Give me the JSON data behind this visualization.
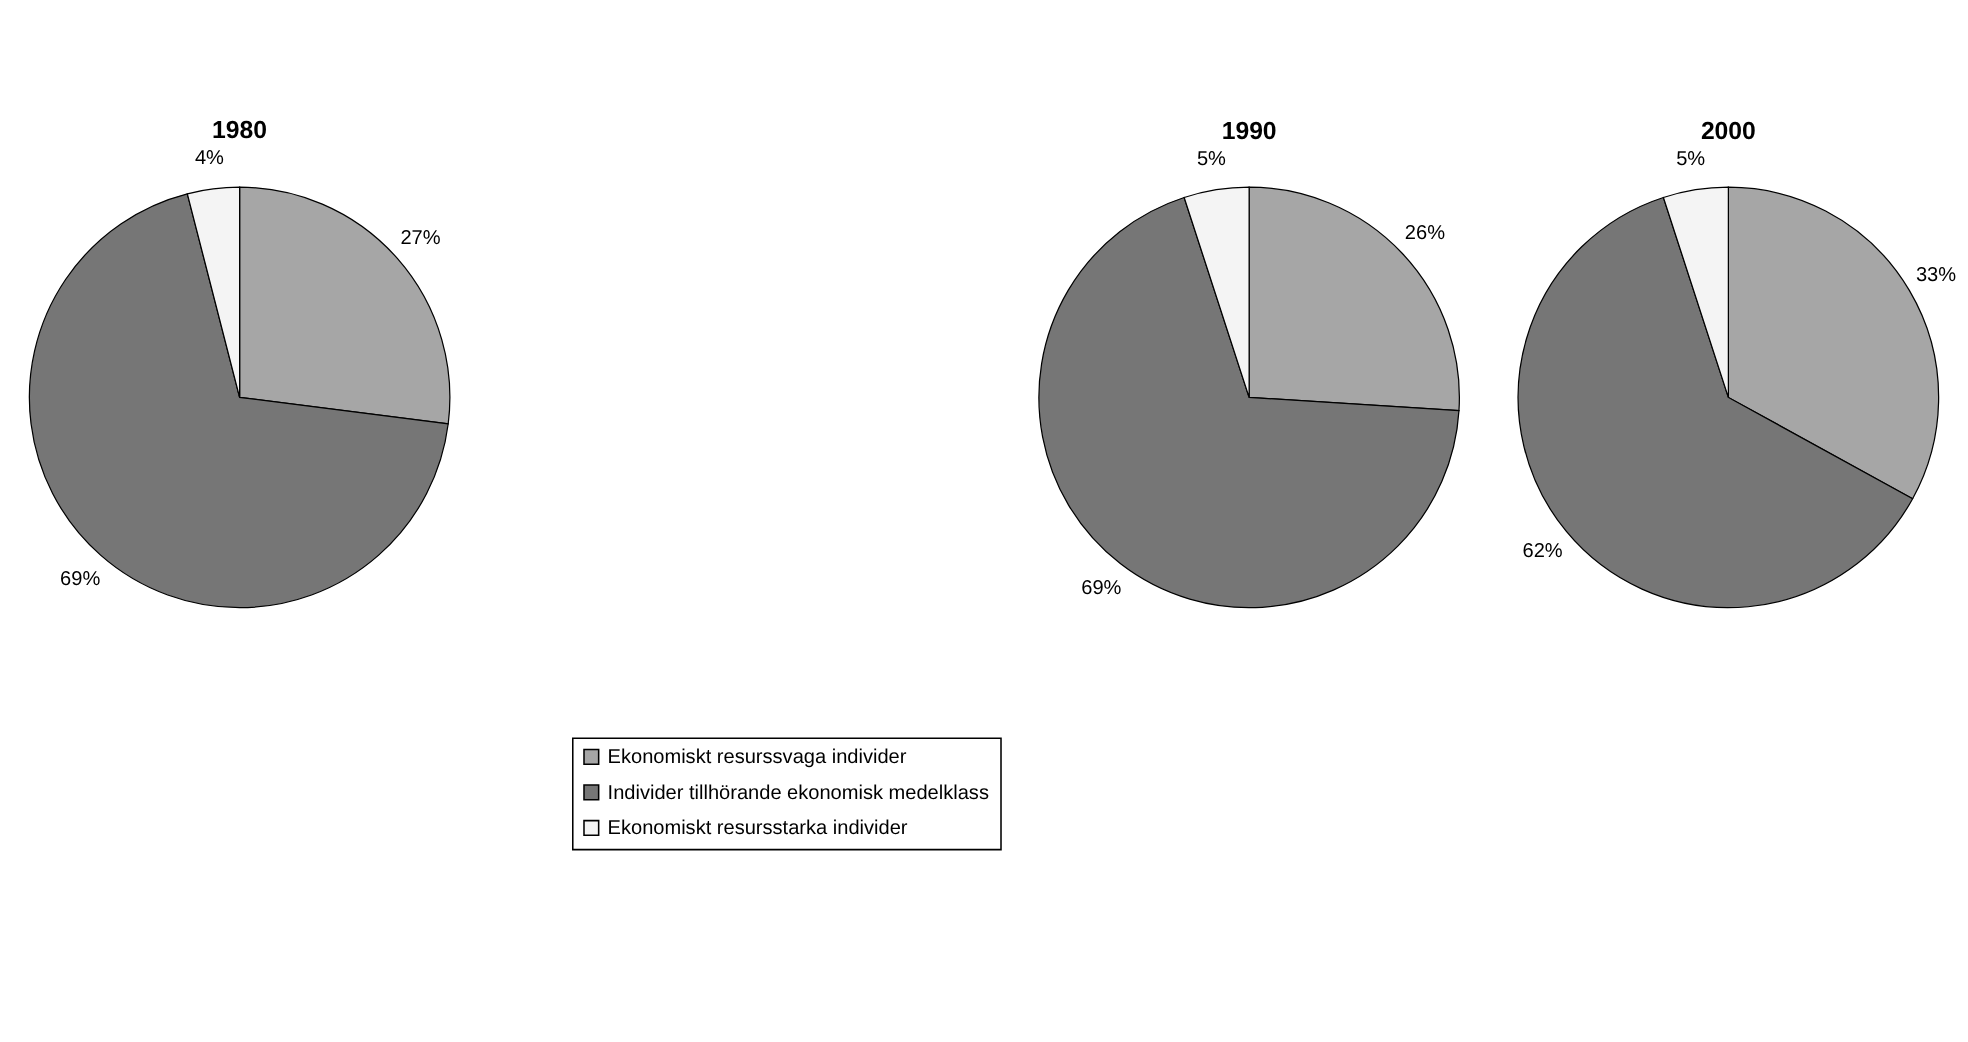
{
  "chart_data": [
    {
      "type": "pie",
      "title": "1980",
      "categories": [
        "Ekonomiskt resurssvaga individer",
        "Individer tillhörande ekonomisk medelklass",
        "Ekonomiskt resursstarka individer"
      ],
      "values": [
        27,
        69,
        4
      ],
      "colors": [
        "#a6a6a6",
        "#767676",
        "#f4f4f4"
      ],
      "value_labels": [
        "27%",
        "69%",
        "4%"
      ],
      "legend": "bottom"
    },
    {
      "type": "pie",
      "title": "1990",
      "values": [
        26,
        69,
        5
      ],
      "colors": [
        "#a6a6a6",
        "#767676",
        "#f4f4f4"
      ],
      "value_labels": [
        "26%",
        "69%",
        "5%"
      ]
    },
    {
      "type": "pie",
      "title": "2000",
      "values": [
        33,
        62,
        5
      ],
      "colors": [
        "#a6a6a6",
        "#767676",
        "#f4f4f4"
      ],
      "value_labels": [
        "33%",
        "62%",
        "5%"
      ]
    }
  ]
}
